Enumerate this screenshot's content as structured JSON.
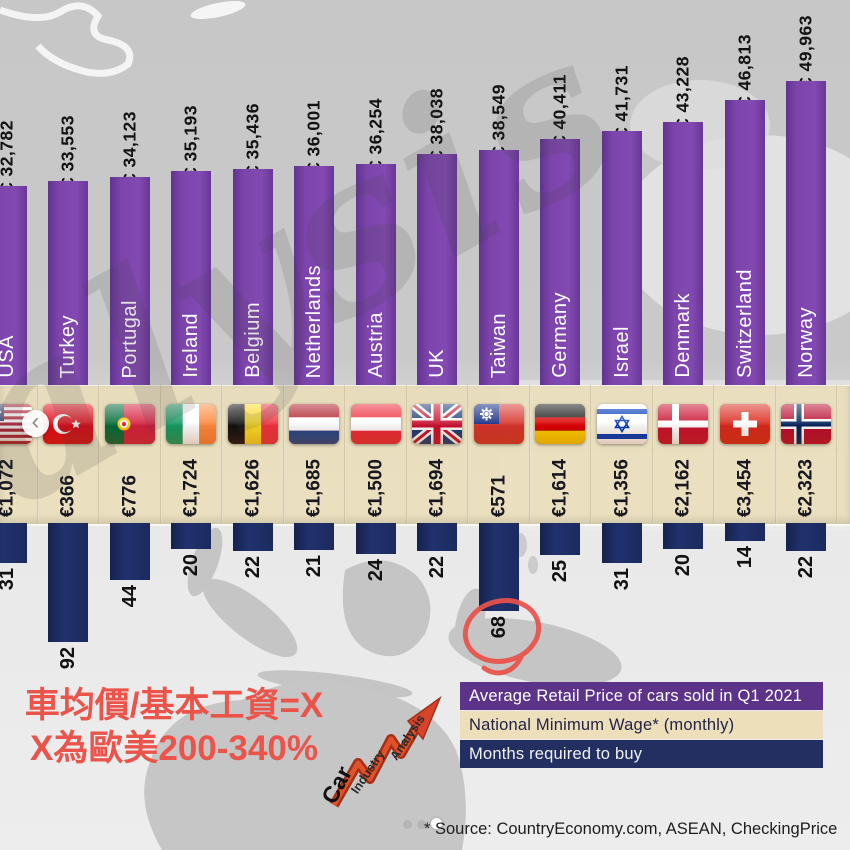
{
  "chart_data": {
    "type": "bar",
    "categories": [
      "USA",
      "Turkey",
      "Portugal",
      "Ireland",
      "Belgium",
      "Netherlands",
      "Austria",
      "UK",
      "Taiwan",
      "Germany",
      "Israel",
      "Denmark",
      "Switzerland",
      "Norway"
    ],
    "flags": [
      "usa",
      "turkey",
      "portugal",
      "ireland",
      "belgium",
      "netherlands",
      "austria",
      "uk",
      "taiwan",
      "germany",
      "israel",
      "denmark",
      "switzerland",
      "norway"
    ],
    "series": [
      {
        "name": "Average Retail Price of cars sold in Q1 2021",
        "unit": "EUR",
        "color": "#7b43a9",
        "direction": "up",
        "values": [
          32782,
          33553,
          34123,
          35193,
          35436,
          36001,
          36254,
          38038,
          38549,
          40411,
          41731,
          43228,
          46813,
          49963
        ],
        "labels": [
          "€ 32,782",
          "€ 33,553",
          "€ 34,123",
          "€ 35,193",
          "€ 35,436",
          "€ 36,001",
          "€ 36,254",
          "€ 38,038",
          "€ 38,549",
          "€ 40,411",
          "€ 41,731",
          "€ 43,228",
          "€ 46,813",
          "€ 49,963"
        ]
      },
      {
        "name": "National Minimum Wage* (monthly)",
        "unit": "EUR",
        "color": "#e9dcb6",
        "values": [
          1072,
          366,
          776,
          1724,
          1626,
          1685,
          1500,
          1694,
          571,
          1614,
          1356,
          2162,
          3454,
          2323
        ],
        "labels": [
          "€1,072",
          "€366",
          "€776",
          "€1,724",
          "€1,626",
          "€1,685",
          "€1,500",
          "€1,694",
          "€571",
          "€1,614",
          "€1,356",
          "€2,162",
          "€3,454",
          "€2,323"
        ]
      },
      {
        "name": "Months required to buy",
        "unit": "months",
        "color": "#1d2b60",
        "direction": "down",
        "values": [
          31,
          92,
          44,
          20,
          22,
          21,
          24,
          22,
          68,
          25,
          31,
          20,
          14,
          22
        ]
      }
    ],
    "legend_position": "bottom-right",
    "axes": "none"
  },
  "legend": {
    "rows": [
      {
        "label": "Average Retail Price of cars sold in Q1 2021",
        "bg": "#5c3388",
        "fg": "#ffffff"
      },
      {
        "label": "National Minimum Wage* (monthly)",
        "bg": "#ecdfba",
        "fg": "#232347"
      },
      {
        "label": "Months required to buy",
        "bg": "#232e61",
        "fg": "#f2f2f2"
      }
    ]
  },
  "caption": {
    "line1": "車均價/基本工資=X",
    "line2": "X為歐美200-340%",
    "color": "#ea544b"
  },
  "annotation": {
    "circled_value": "68",
    "country": "Taiwan",
    "color": "#ea5149"
  },
  "logo": {
    "car": "Car",
    "industry": "Industry",
    "analysis": "Analysis"
  },
  "watermark": {
    "text": "alysis"
  },
  "nav": {
    "prev_glyph": "‹"
  },
  "footer": {
    "source": "* Source: CountryEconomy.com, ASEAN, CheckingPrice",
    "carousel_dots": 3,
    "active_dot": 3
  }
}
